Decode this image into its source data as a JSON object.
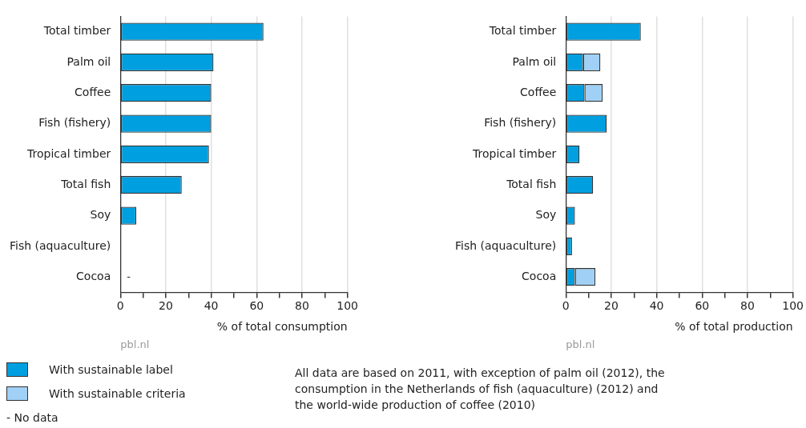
{
  "chart_data": [
    {
      "type": "bar",
      "orientation": "horizontal",
      "stacked": true,
      "xlabel": "% of total consumption",
      "categories": [
        "Total timber",
        "Palm oil",
        "Coffee",
        "Fish (fishery)",
        "Tropical timber",
        "Total fish",
        "Soy",
        "Fish (aquaculture)",
        "Cocoa"
      ],
      "series": [
        {
          "color": "#009fe0",
          "values": [
            63,
            41,
            40,
            40,
            39,
            27,
            7,
            0,
            null
          ]
        }
      ],
      "xlim": [
        0,
        100
      ],
      "xticks": [
        0,
        {
          "value": 10,
          "label": null
        },
        20,
        {
          "value": 30,
          "label": null
        },
        40,
        {
          "value": 50,
          "label": null
        },
        60,
        {
          "value": 70,
          "label": null
        },
        80,
        {
          "value": 90,
          "label": null
        },
        100
      ],
      "grid": "x",
      "annotations": [
        "pbl.nl",
        "- No data",
        "-"
      ]
    },
    {
      "type": "bar",
      "orientation": "horizontal",
      "stacked": true,
      "xlabel": "% of total production",
      "categories": [
        "Total timber",
        "Palm oil",
        "Coffee",
        "Fish (fishery)",
        "Tropical timber",
        "Total fish",
        "Soy",
        "Fish (aquaculture)",
        "Cocoa"
      ],
      "series": [
        {
          "name": "With sustainable label",
          "color": "#009fe0",
          "values": [
            33,
            7.6,
            8.2,
            18,
            6,
            12,
            4,
            2.7,
            4
          ]
        },
        {
          "name": "With sustainable criteria",
          "color": "#a0d0f5",
          "values": [
            null,
            7.6,
            8,
            null,
            null,
            null,
            null,
            null,
            9
          ]
        }
      ],
      "xlim": [
        0,
        100
      ],
      "xticks": [
        0,
        {
          "value": 10,
          "label": null
        },
        20,
        {
          "value": 30,
          "label": null
        },
        40,
        {
          "value": 50,
          "label": null
        },
        60,
        {
          "value": 70,
          "label": null
        },
        80,
        {
          "value": 90,
          "label": null
        },
        100
      ],
      "grid": "x",
      "legend": "bottom",
      "annotations": [
        "pbl.nl",
        "All data are based on 2011, with exception of palm oil (2012), the consumption in the Netherlands of fish (aquaculture) (2012) and the world-wide production of coffee (2010)"
      ]
    }
  ]
}
